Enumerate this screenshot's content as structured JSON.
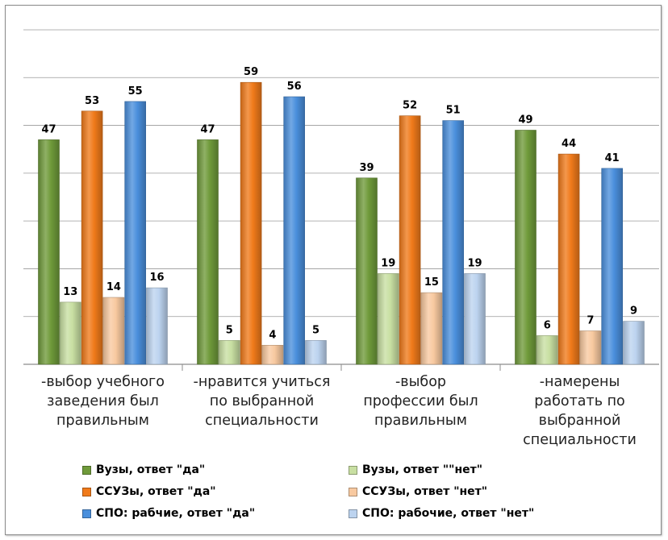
{
  "chart_data": {
    "type": "bar",
    "categories": [
      [
        "-выбор учебного",
        "заведения был",
        "правильным"
      ],
      [
        "-нравится учиться",
        "по выбранной",
        "специальности"
      ],
      [
        "-выбор",
        "профессии был",
        "правильным"
      ],
      [
        "-намерены",
        "работать по",
        "выбранной",
        "специальности"
      ]
    ],
    "series": [
      {
        "name": "Вузы, ответ \"да\"",
        "color": "#6f9a3a",
        "values": [
          47,
          47,
          39,
          49
        ]
      },
      {
        "name": "Вузы, ответ \"\"нет\"",
        "color": "#c8dfa2",
        "values": [
          13,
          5,
          19,
          6
        ]
      },
      {
        "name": "ССУЗы, ответ \"да\"",
        "color": "#f07a1a",
        "values": [
          53,
          59,
          52,
          44
        ]
      },
      {
        "name": "ССУЗы, ответ \"нет\"",
        "color": "#f8c9a0",
        "values": [
          14,
          4,
          15,
          7
        ]
      },
      {
        "name": "СПО: рабчие, ответ \"да\"",
        "color": "#4a8fdc",
        "values": [
          55,
          56,
          51,
          41
        ]
      },
      {
        "name": "СПО: рабочие, ответ \"нет\"",
        "color": "#bcd3ef",
        "values": [
          16,
          5,
          19,
          9
        ]
      }
    ],
    "ylim": [
      0,
      70
    ],
    "grid": true,
    "y_tick_labels_shown": false,
    "legend_position": "bottom",
    "title": "",
    "xlabel": "",
    "ylabel": ""
  }
}
